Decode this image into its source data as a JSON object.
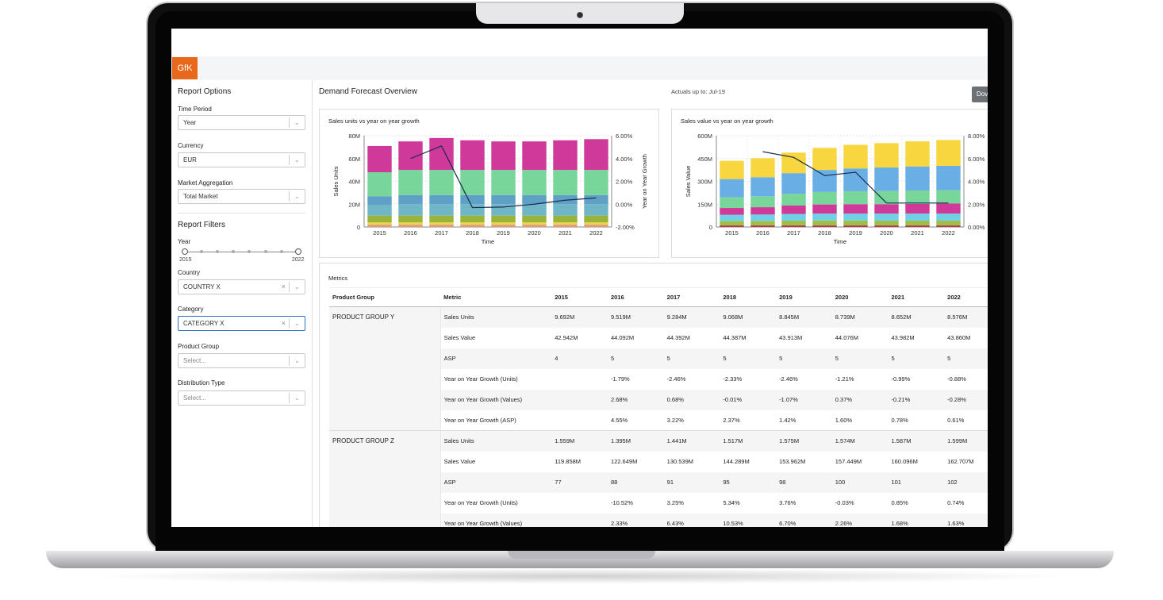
{
  "app": {
    "logo_text": "GfK"
  },
  "sidebar": {
    "report_options_title": "Report Options",
    "time_period": {
      "label": "Time Period",
      "value": "Year"
    },
    "currency": {
      "label": "Currency",
      "value": "EUR"
    },
    "market_aggregation": {
      "label": "Market Aggregation",
      "value": "Total Market"
    },
    "report_filters_title": "Report Filters",
    "year_slider": {
      "label": "Year",
      "min_label": "2015",
      "max_label": "2022",
      "range": [
        2015,
        2022
      ]
    },
    "country": {
      "label": "Country",
      "value": "COUNTRY X"
    },
    "category": {
      "label": "Category",
      "value": "CATEGORY X"
    },
    "product_group": {
      "label": "Product Group",
      "placeholder": "Select..."
    },
    "distribution_type": {
      "label": "Distribution Type",
      "placeholder": "Select..."
    }
  },
  "main": {
    "title": "Demand Forecast Overview",
    "actuals": "Actuals up to: Jul-19",
    "download_label": "Dov"
  },
  "colors": {
    "stack": [
      "#e39a7a",
      "#f0d24a",
      "#98b43a",
      "#6fb7c7",
      "#5fa0c6",
      "#78d69a",
      "#cf3a9a"
    ],
    "stack2": [
      "#b8324b",
      "#9fbf4a",
      "#6fd0e6",
      "#cf3a9a",
      "#78d69a",
      "#6aaee6",
      "#f7d640"
    ],
    "line": "#1b2a4e"
  },
  "chart_data": [
    {
      "type": "bar",
      "title": "Sales units vs year on year growth",
      "xlabel": "Time",
      "ylabel": "Sales Units",
      "y2label": "Year on Year Growth",
      "categories": [
        "2015",
        "2016",
        "2017",
        "2018",
        "2019",
        "2020",
        "2021",
        "2022"
      ],
      "ylim": [
        0,
        80
      ],
      "yticks": [
        "0",
        "20M",
        "40M",
        "60M",
        "80M"
      ],
      "y2lim": [
        -2,
        6
      ],
      "y2ticks": [
        "-2.00%",
        "0.00%",
        "2.00%",
        "4.00%",
        "6.00%"
      ],
      "stacks": [
        [
          2,
          2,
          2,
          2,
          2,
          2,
          2,
          2
        ],
        [
          2,
          2,
          2,
          2,
          2,
          2,
          2,
          2
        ],
        [
          6,
          6,
          6,
          6,
          6,
          6,
          6,
          6
        ],
        [
          9,
          10,
          10,
          10,
          10,
          10,
          10,
          10
        ],
        [
          8,
          8,
          8,
          8,
          8,
          8,
          8,
          8
        ],
        [
          21,
          22,
          22,
          22,
          22,
          22,
          22,
          22
        ],
        [
          23,
          25,
          28,
          26,
          25,
          25,
          26,
          27
        ]
      ],
      "line": [
        null,
        4.0,
        5.1,
        -0.3,
        -0.25,
        0.0,
        0.35,
        0.55
      ]
    },
    {
      "type": "bar",
      "title": "Sales value vs year on year growth",
      "xlabel": "Time",
      "ylabel": "Sales Value",
      "categories": [
        "2015",
        "2016",
        "2017",
        "2018",
        "2019",
        "2020",
        "2021",
        "2022"
      ],
      "ylim": [
        0,
        600
      ],
      "yticks": [
        "0",
        "150M",
        "300M",
        "450M",
        "600M"
      ],
      "y2lim": [
        0,
        8
      ],
      "y2ticks": [
        "0.00%",
        "2.00%",
        "4.00%",
        "6.00%",
        "8.00%"
      ],
      "stacks": [
        [
          10,
          10,
          10,
          10,
          10,
          10,
          10,
          10
        ],
        [
          30,
          30,
          32,
          33,
          33,
          32,
          32,
          32
        ],
        [
          40,
          42,
          44,
          45,
          45,
          46,
          46,
          46
        ],
        [
          45,
          48,
          55,
          60,
          62,
          62,
          64,
          66
        ],
        [
          70,
          72,
          78,
          82,
          85,
          86,
          88,
          88
        ],
        [
          120,
          125,
          135,
          145,
          150,
          155,
          158,
          160
        ],
        [
          120,
          125,
          135,
          145,
          155,
          160,
          165,
          170
        ]
      ],
      "line": [
        null,
        6.6,
        6.1,
        4.5,
        4.8,
        2.1,
        2.1,
        2.1
      ]
    }
  ],
  "metrics": {
    "title": "Metrics",
    "headers": [
      "Product Group",
      "Metric",
      "2015",
      "2016",
      "2017",
      "2018",
      "2019",
      "2020",
      "2021",
      "2022"
    ],
    "groups": [
      {
        "name": "PRODUCT GROUP Y",
        "rows": [
          {
            "metric": "Sales Units",
            "values": [
              "9.692M",
              "9.519M",
              "9.284M",
              "9.068M",
              "8.845M",
              "8.739M",
              "8.652M",
              "8.576M"
            ]
          },
          {
            "metric": "Sales Value",
            "values": [
              "42.942M",
              "44.092M",
              "44.392M",
              "44.387M",
              "43.913M",
              "44.076M",
              "43.982M",
              "43.860M"
            ]
          },
          {
            "metric": "ASP",
            "values": [
              "4",
              "5",
              "5",
              "5",
              "5",
              "5",
              "5",
              "5"
            ]
          },
          {
            "metric": "Year on Year Growth (Units)",
            "values": [
              "",
              "-1.79%",
              "-2.46%",
              "-2.33%",
              "-2.46%",
              "-1.21%",
              "-0.99%",
              "-0.88%"
            ]
          },
          {
            "metric": "Year on Year Growth (Values)",
            "values": [
              "",
              "2.68%",
              "0.68%",
              "-0.01%",
              "-1.07%",
              "0.37%",
              "-0.21%",
              "-0.28%"
            ]
          },
          {
            "metric": "Year on Year Growth (ASP)",
            "values": [
              "",
              "4.55%",
              "3.22%",
              "2.37%",
              "1.42%",
              "1.60%",
              "0.78%",
              "0.61%"
            ]
          }
        ]
      },
      {
        "name": "PRODUCT GROUP Z",
        "rows": [
          {
            "metric": "Sales Units",
            "values": [
              "1.559M",
              "1.395M",
              "1.441M",
              "1.517M",
              "1.575M",
              "1.574M",
              "1.587M",
              "1.599M"
            ]
          },
          {
            "metric": "Sales Value",
            "values": [
              "119.858M",
              "122.649M",
              "130.539M",
              "144.289M",
              "153.962M",
              "157.449M",
              "160.096M",
              "162.707M"
            ]
          },
          {
            "metric": "ASP",
            "values": [
              "77",
              "88",
              "91",
              "95",
              "98",
              "100",
              "101",
              "102"
            ]
          },
          {
            "metric": "Year on Year Growth (Units)",
            "values": [
              "",
              "-10.52%",
              "3.25%",
              "5.34%",
              "3.76%",
              "-0.03%",
              "0.85%",
              "0.74%"
            ]
          },
          {
            "metric": "Year on Year Growth (Values)",
            "values": [
              "",
              "2.33%",
              "6.43%",
              "10.53%",
              "6.70%",
              "2.26%",
              "1.68%",
              "1.63%"
            ]
          }
        ]
      }
    ]
  }
}
